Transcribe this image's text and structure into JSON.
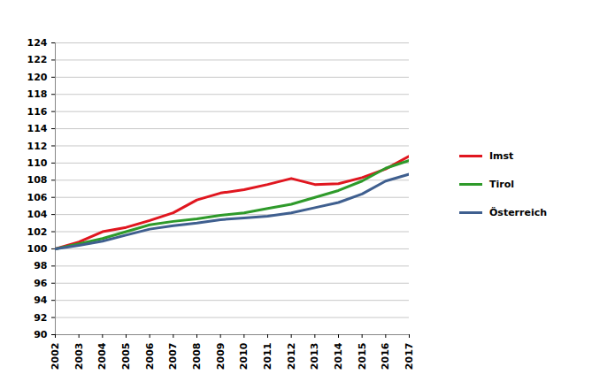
{
  "chart_data": {
    "type": "line",
    "x": [
      2002,
      2003,
      2004,
      2005,
      2006,
      2007,
      2008,
      2009,
      2010,
      2011,
      2012,
      2013,
      2014,
      2015,
      2016,
      2017
    ],
    "series": [
      {
        "name": "Imst",
        "color": "#e0161f",
        "values": [
          100,
          100.8,
          102,
          102.5,
          103.3,
          104.2,
          105.7,
          106.5,
          106.9,
          107.5,
          108.2,
          107.5,
          107.6,
          108.3,
          109.3,
          110.8
        ]
      },
      {
        "name": "Tirol",
        "color": "#2e9a2a",
        "values": [
          100,
          100.6,
          101.2,
          102.0,
          102.8,
          103.2,
          103.5,
          103.9,
          104.2,
          104.7,
          105.2,
          106.0,
          106.8,
          107.9,
          109.4,
          110.3
        ]
      },
      {
        "name": "Österreich",
        "color": "#3f5f8f",
        "values": [
          100,
          100.4,
          100.9,
          101.6,
          102.3,
          102.7,
          103.0,
          103.4,
          103.6,
          103.8,
          104.2,
          104.8,
          105.4,
          106.4,
          107.9,
          108.7
        ]
      }
    ],
    "xlim": [
      2002,
      2017
    ],
    "xticks": [
      2002,
      2003,
      2004,
      2005,
      2006,
      2007,
      2008,
      2009,
      2010,
      2011,
      2012,
      2013,
      2014,
      2015,
      2016,
      2017
    ],
    "ylim": [
      90,
      124
    ],
    "yticks": [
      90,
      92,
      94,
      96,
      98,
      100,
      102,
      104,
      106,
      108,
      110,
      112,
      114,
      116,
      118,
      120,
      122,
      124
    ],
    "grid": true,
    "legend": "right"
  }
}
